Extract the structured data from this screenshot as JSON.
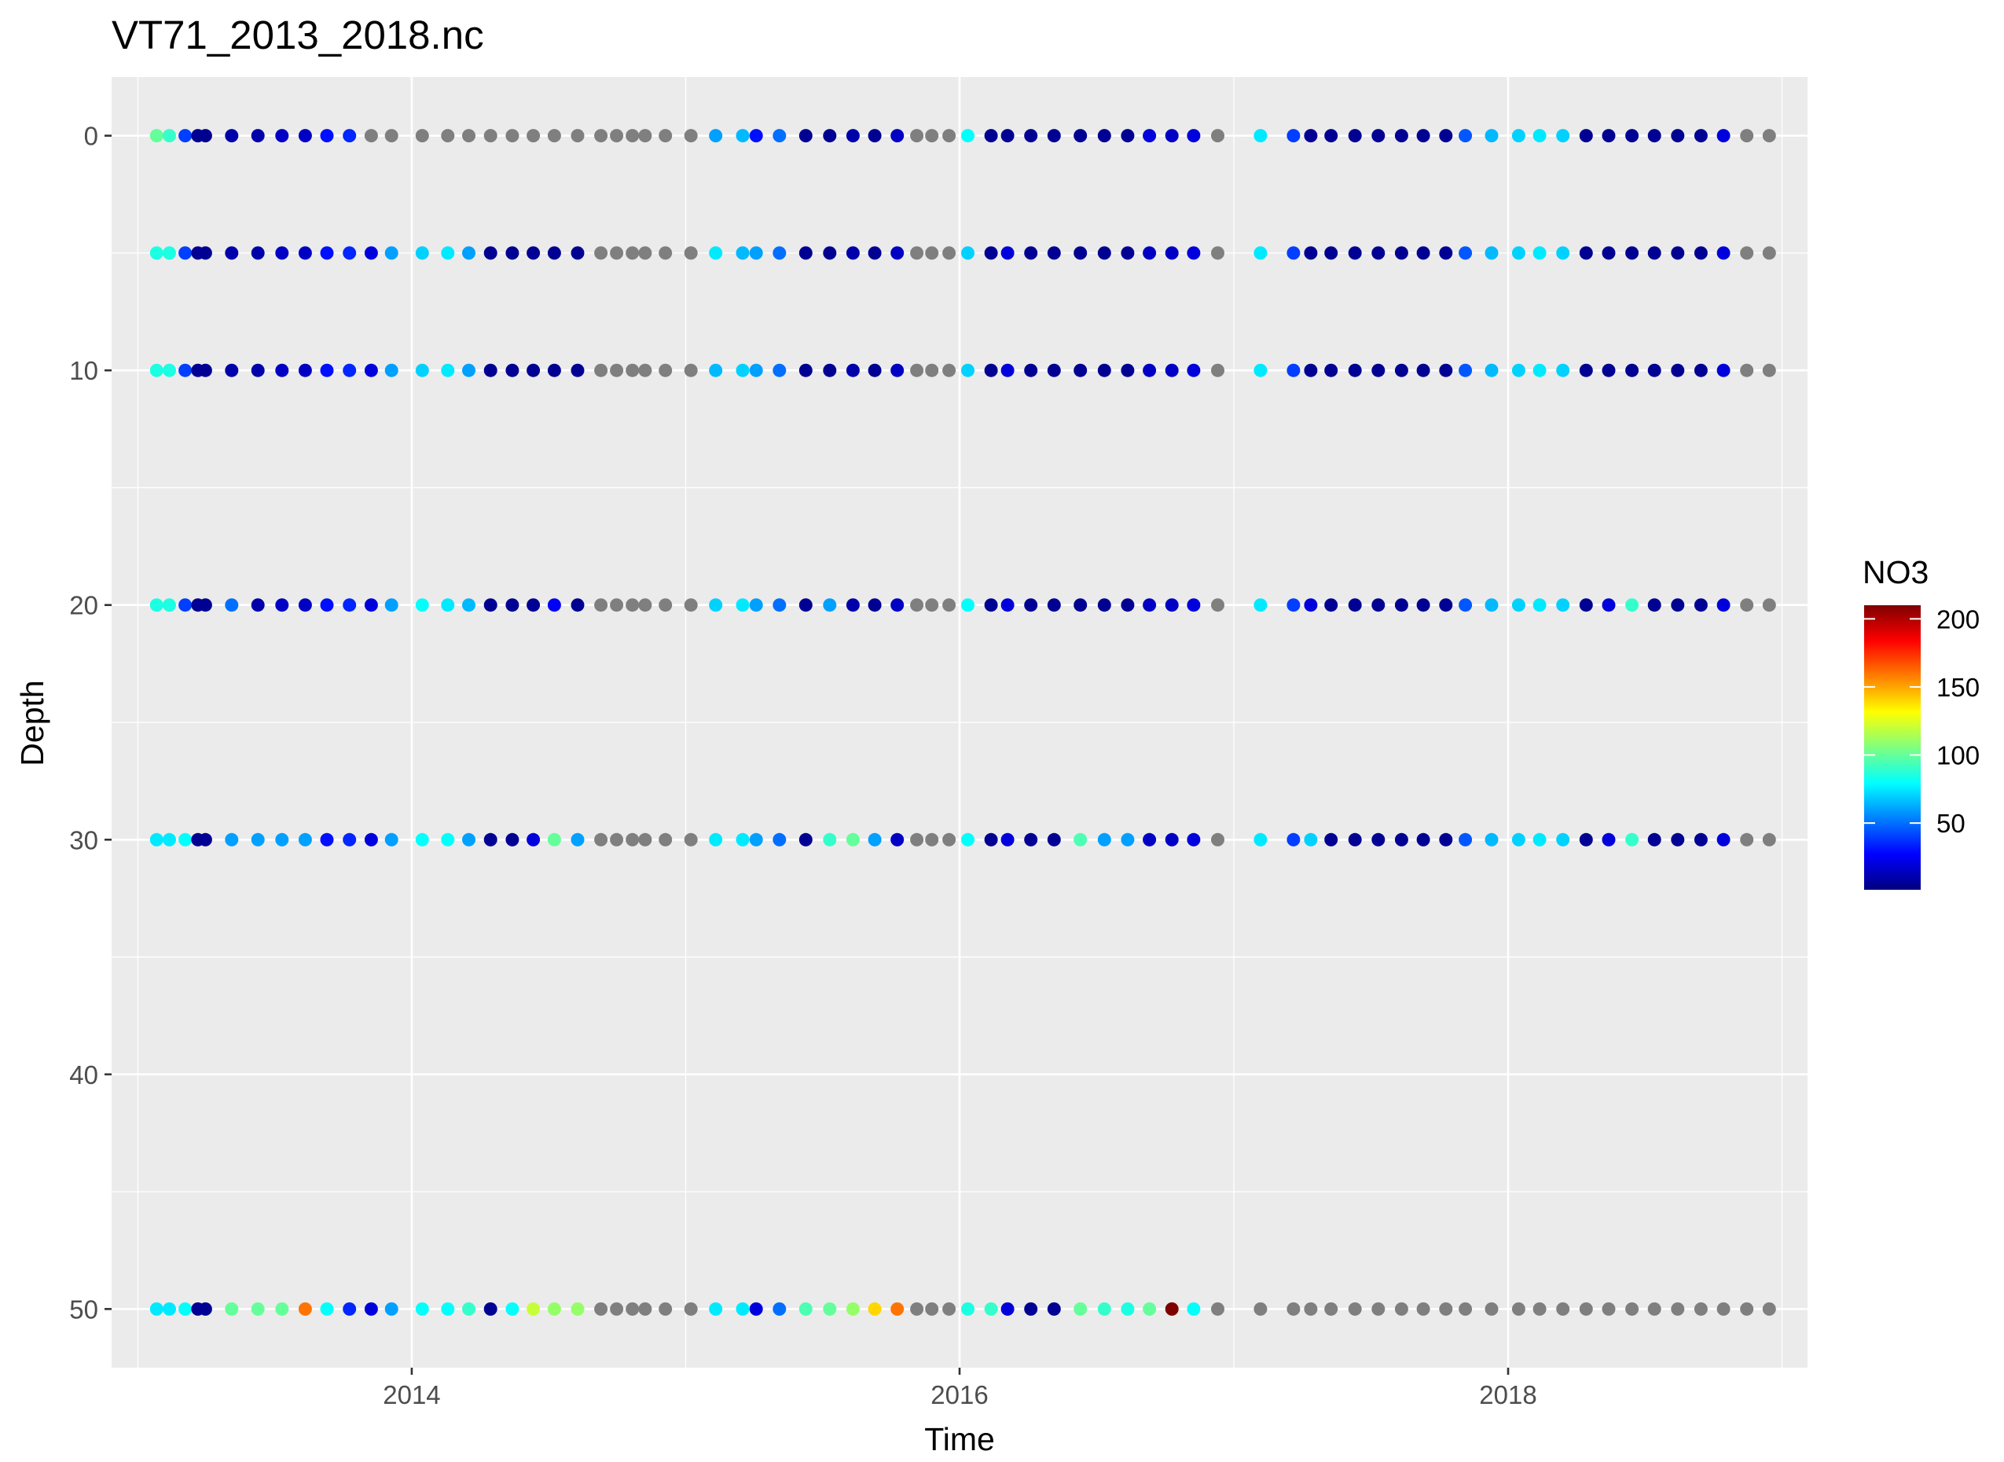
{
  "chart_data": {
    "type": "scatter",
    "title": "VT71_2013_2018.nc",
    "xlabel": "Time",
    "ylabel": "Depth",
    "x_type": "date",
    "xlim": [
      "2012-11-27",
      "2019-02-04"
    ],
    "ylim": [
      52.5,
      -2.5
    ],
    "y_reversed": true,
    "x_ticks": [
      {
        "value": "2014-01-01",
        "label": "2014"
      },
      {
        "value": "2016-01-01",
        "label": "2016"
      },
      {
        "value": "2018-01-01",
        "label": "2018"
      }
    ],
    "y_ticks": [
      {
        "value": 0,
        "label": "0"
      },
      {
        "value": 10,
        "label": "10"
      },
      {
        "value": 20,
        "label": "20"
      },
      {
        "value": 30,
        "label": "30"
      },
      {
        "value": 40,
        "label": "40"
      },
      {
        "value": 50,
        "label": "50"
      }
    ],
    "grid": true,
    "panel_background": "#ebebeb",
    "grid_color": "#ffffff",
    "missing_color": "#7f7f7f",
    "legend": {
      "title": "NO3",
      "placement": "right",
      "range": [
        1,
        210
      ],
      "ticks": [
        {
          "value": 50,
          "label": "50"
        },
        {
          "value": 100,
          "label": "100"
        },
        {
          "value": 150,
          "label": "150"
        },
        {
          "value": 200,
          "label": "200"
        }
      ],
      "colors": [
        "#00007F",
        "#0000FF",
        "#007FFF",
        "#00FFFF",
        "#7FFF7F",
        "#FFFF00",
        "#FF7F00",
        "#FF0000",
        "#7F0000"
      ]
    },
    "depths": [
      0,
      5,
      10,
      20,
      30,
      50
    ],
    "dates": [
      "2013-01-26",
      "2013-02-12",
      "2013-03-05",
      "2013-03-22",
      "2013-04-01",
      "2013-05-06",
      "2013-06-10",
      "2013-07-12",
      "2013-08-12",
      "2013-09-10",
      "2013-10-10",
      "2013-11-08",
      "2013-12-05",
      "2014-01-15",
      "2014-02-18",
      "2014-03-18",
      "2014-04-16",
      "2014-05-15",
      "2014-06-12",
      "2014-07-10",
      "2014-08-10",
      "2014-09-10",
      "2014-10-01",
      "2014-10-22",
      "2014-11-08",
      "2014-12-05",
      "2015-01-08",
      "2015-02-10",
      "2015-03-18",
      "2015-04-05",
      "2015-05-06",
      "2015-06-10",
      "2015-07-12",
      "2015-08-12",
      "2015-09-10",
      "2015-10-10",
      "2015-11-05",
      "2015-11-25",
      "2015-12-18",
      "2016-01-12",
      "2016-02-12",
      "2016-03-05",
      "2016-04-05",
      "2016-05-06",
      "2016-06-10",
      "2016-07-12",
      "2016-08-12",
      "2016-09-10",
      "2016-10-10",
      "2016-11-08",
      "2016-12-10",
      "2017-02-05",
      "2017-03-21",
      "2017-04-13",
      "2017-05-10",
      "2017-06-11",
      "2017-07-12",
      "2017-08-12",
      "2017-09-10",
      "2017-10-10",
      "2017-11-05",
      "2017-12-10",
      "2018-01-15",
      "2018-02-12",
      "2018-03-15",
      "2018-04-15",
      "2018-05-15",
      "2018-06-15",
      "2018-07-15",
      "2018-08-15",
      "2018-09-15",
      "2018-10-15",
      "2018-11-15",
      "2018-12-15"
    ],
    "no3": {
      "0": [
        100,
        90,
        40,
        5,
        4,
        10,
        10,
        15,
        15,
        30,
        35,
        null,
        null,
        null,
        null,
        null,
        null,
        null,
        null,
        null,
        null,
        null,
        null,
        null,
        null,
        null,
        null,
        60,
        65,
        30,
        50,
        5,
        5,
        10,
        5,
        15,
        null,
        null,
        null,
        80,
        5,
        5,
        5,
        5,
        5,
        5,
        5,
        20,
        15,
        20,
        null,
        75,
        40,
        5,
        5,
        5,
        5,
        5,
        5,
        5,
        45,
        65,
        70,
        75,
        70,
        5,
        5,
        5,
        5,
        5,
        5,
        20,
        null,
        null
      ],
      "5": [
        85,
        85,
        40,
        5,
        5,
        10,
        10,
        15,
        15,
        30,
        35,
        20,
        60,
        70,
        75,
        60,
        5,
        5,
        5,
        5,
        5,
        null,
        null,
        null,
        null,
        null,
        null,
        75,
        65,
        60,
        50,
        5,
        5,
        10,
        5,
        15,
        null,
        null,
        null,
        70,
        5,
        20,
        5,
        5,
        5,
        5,
        5,
        15,
        15,
        20,
        null,
        75,
        40,
        5,
        5,
        5,
        5,
        5,
        5,
        5,
        45,
        65,
        70,
        75,
        70,
        5,
        5,
        5,
        5,
        5,
        5,
        20,
        null,
        null
      ],
      "10": [
        85,
        85,
        40,
        5,
        5,
        10,
        10,
        15,
        15,
        30,
        35,
        20,
        60,
        70,
        75,
        60,
        5,
        5,
        5,
        5,
        5,
        null,
        null,
        null,
        null,
        null,
        null,
        65,
        70,
        60,
        50,
        5,
        5,
        10,
        5,
        15,
        null,
        null,
        null,
        70,
        5,
        20,
        5,
        5,
        5,
        5,
        5,
        15,
        15,
        20,
        null,
        75,
        40,
        5,
        5,
        5,
        5,
        5,
        5,
        5,
        45,
        65,
        70,
        75,
        70,
        5,
        5,
        5,
        5,
        5,
        5,
        20,
        null,
        null
      ],
      "20": [
        85,
        85,
        40,
        5,
        5,
        50,
        10,
        15,
        15,
        30,
        35,
        20,
        60,
        80,
        75,
        65,
        5,
        5,
        5,
        25,
        5,
        null,
        null,
        null,
        null,
        null,
        null,
        70,
        75,
        60,
        50,
        5,
        60,
        10,
        5,
        15,
        null,
        null,
        null,
        80,
        5,
        20,
        5,
        5,
        5,
        5,
        5,
        15,
        15,
        20,
        null,
        75,
        40,
        20,
        5,
        5,
        5,
        5,
        5,
        5,
        45,
        65,
        70,
        75,
        70,
        5,
        20,
        90,
        5,
        5,
        5,
        20,
        null,
        null
      ],
      "30": [
        75,
        75,
        80,
        5,
        5,
        60,
        60,
        60,
        60,
        30,
        35,
        20,
        60,
        80,
        80,
        60,
        5,
        5,
        20,
        100,
        60,
        null,
        null,
        null,
        null,
        null,
        null,
        75,
        75,
        60,
        50,
        5,
        90,
        100,
        60,
        15,
        null,
        null,
        null,
        80,
        5,
        20,
        5,
        5,
        95,
        60,
        60,
        15,
        15,
        20,
        null,
        75,
        40,
        70,
        5,
        5,
        5,
        5,
        5,
        5,
        45,
        65,
        70,
        75,
        70,
        5,
        20,
        90,
        5,
        5,
        5,
        20,
        null,
        null
      ],
      "50": [
        75,
        75,
        80,
        5,
        5,
        100,
        100,
        100,
        160,
        80,
        35,
        20,
        60,
        80,
        80,
        90,
        5,
        80,
        120,
        110,
        110,
        null,
        null,
        null,
        null,
        null,
        null,
        75,
        75,
        20,
        50,
        95,
        100,
        110,
        140,
        160,
        null,
        null,
        null,
        85,
        90,
        20,
        5,
        5,
        100,
        90,
        85,
        100,
        210,
        80,
        null,
        null,
        null,
        null,
        null,
        null,
        null,
        null,
        null,
        null,
        null,
        null,
        null,
        null,
        null,
        null,
        null,
        null,
        null,
        null,
        null,
        null,
        null,
        null
      ]
    }
  }
}
